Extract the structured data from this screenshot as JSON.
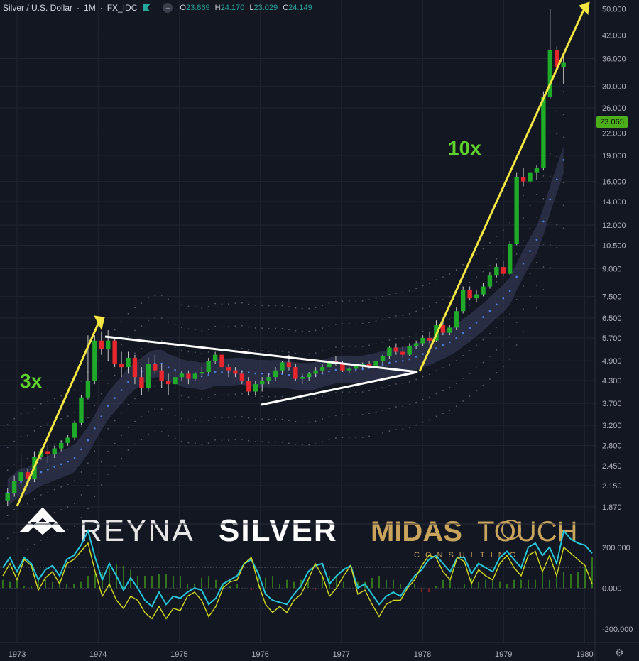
{
  "header": {
    "symbol": "Silver / U.S. Dollar",
    "interval": "1M",
    "source": "FX_IDC",
    "o": "23.869",
    "h": "24.170",
    "l": "23.029",
    "c": "24.149"
  },
  "last_price": "23.065",
  "annotations": {
    "left_multiplier": "3x",
    "right_multiplier": "10x"
  },
  "watermark": {
    "brand_light": "REYNA",
    "brand_bold": "SILVER",
    "partner": "MIDAS",
    "partner2": "TOUCH",
    "partner_sub": "CONSULTING"
  },
  "colors": {
    "bg": "#131722",
    "up": "#26a69a",
    "down": "#ef5350",
    "up_candle": "#1faa2a",
    "down_candle": "#e8262e",
    "arrow": "#f5e642",
    "triangle": "#ffffff",
    "accent_green": "#5fd32b",
    "osc_cyan": "#26c6da",
    "osc_yellow": "#d4d91c"
  },
  "chart_data": [
    {
      "type": "candlestick",
      "title": "Silver / U.S. Dollar",
      "scale": "log",
      "ylim": [
        1.75,
        52
      ],
      "y_ticks": [
        "50.000",
        "42.000",
        "36.000",
        "30.000",
        "26.000",
        "22.000",
        "19.000",
        "16.000",
        "14.000",
        "12.000",
        "10.500",
        "9.000",
        "7.500",
        "6.500",
        "5.700",
        "4.900",
        "4.300",
        "3.700",
        "3.200",
        "2.800",
        "2.450",
        "2.150",
        "1.870"
      ],
      "x_ticks": [
        "1973",
        "1974",
        "1975",
        "1976",
        "1977",
        "1978",
        "1979",
        "1980"
      ],
      "ohlc": [
        [
          1.95,
          2.12,
          1.88,
          2.05
        ],
        [
          2.05,
          2.3,
          2.0,
          2.22
        ],
        [
          2.22,
          2.65,
          2.15,
          2.35
        ],
        [
          2.35,
          2.4,
          2.15,
          2.25
        ],
        [
          2.25,
          2.7,
          2.2,
          2.6
        ],
        [
          2.6,
          2.75,
          2.55,
          2.7
        ],
        [
          2.7,
          2.8,
          2.5,
          2.65
        ],
        [
          2.65,
          2.8,
          2.58,
          2.75
        ],
        [
          2.75,
          2.9,
          2.7,
          2.85
        ],
        [
          2.85,
          3.0,
          2.8,
          2.95
        ],
        [
          2.95,
          3.3,
          2.9,
          3.25
        ],
        [
          3.25,
          3.9,
          3.2,
          3.85
        ],
        [
          3.85,
          5.8,
          3.8,
          4.3
        ],
        [
          4.3,
          5.8,
          4.2,
          5.6
        ],
        [
          5.6,
          5.95,
          5.1,
          5.3
        ],
        [
          5.3,
          6.0,
          4.9,
          5.6
        ],
        [
          5.6,
          5.7,
          4.7,
          4.8
        ],
        [
          4.8,
          5.2,
          4.4,
          4.7
        ],
        [
          4.7,
          5.2,
          4.5,
          5.0
        ],
        [
          5.0,
          5.1,
          4.2,
          4.4
        ],
        [
          4.4,
          4.7,
          3.9,
          4.1
        ],
        [
          4.1,
          5.0,
          4.0,
          4.8
        ],
        [
          4.8,
          5.1,
          4.5,
          4.6
        ],
        [
          4.6,
          4.8,
          4.1,
          4.3
        ],
        [
          4.3,
          4.5,
          3.9,
          4.2
        ],
        [
          4.2,
          4.6,
          4.1,
          4.4
        ],
        [
          4.4,
          4.6,
          4.3,
          4.5
        ],
        [
          4.5,
          4.6,
          4.2,
          4.35
        ],
        [
          4.35,
          4.55,
          4.3,
          4.5
        ],
        [
          4.5,
          4.7,
          4.4,
          4.55
        ],
        [
          4.55,
          5.0,
          4.5,
          4.9
        ],
        [
          4.9,
          5.2,
          4.8,
          5.1
        ],
        [
          5.1,
          5.2,
          4.6,
          4.7
        ],
        [
          4.7,
          4.8,
          4.4,
          4.6
        ],
        [
          4.6,
          4.7,
          4.4,
          4.5
        ],
        [
          4.5,
          4.6,
          4.2,
          4.3
        ],
        [
          4.3,
          4.4,
          3.9,
          4.0
        ],
        [
          4.0,
          4.3,
          3.9,
          4.2
        ],
        [
          4.2,
          4.4,
          4.0,
          4.3
        ],
        [
          4.3,
          4.5,
          4.2,
          4.4
        ],
        [
          4.4,
          4.7,
          4.3,
          4.6
        ],
        [
          4.6,
          4.9,
          4.5,
          4.85
        ],
        [
          4.85,
          5.1,
          4.6,
          4.7
        ],
        [
          4.7,
          4.8,
          4.3,
          4.35
        ],
        [
          4.35,
          4.5,
          4.2,
          4.4
        ],
        [
          4.4,
          4.55,
          4.3,
          4.5
        ],
        [
          4.5,
          4.7,
          4.4,
          4.6
        ],
        [
          4.6,
          4.8,
          4.5,
          4.7
        ],
        [
          4.7,
          4.95,
          4.6,
          4.9
        ],
        [
          4.9,
          5.05,
          4.75,
          4.8
        ],
        [
          4.8,
          4.9,
          4.55,
          4.6
        ],
        [
          4.6,
          4.7,
          4.5,
          4.65
        ],
        [
          4.65,
          4.8,
          4.55,
          4.75
        ],
        [
          4.75,
          4.85,
          4.65,
          4.8
        ],
        [
          4.8,
          4.9,
          4.7,
          4.75
        ],
        [
          4.75,
          4.95,
          4.7,
          4.9
        ],
        [
          4.9,
          5.1,
          4.8,
          5.05
        ],
        [
          5.05,
          5.4,
          4.95,
          5.35
        ],
        [
          5.35,
          5.5,
          5.1,
          5.2
        ],
        [
          5.2,
          5.4,
          5.0,
          5.1
        ],
        [
          5.1,
          5.5,
          5.05,
          5.4
        ],
        [
          5.4,
          5.6,
          5.3,
          5.5
        ],
        [
          5.5,
          5.8,
          5.4,
          5.7
        ],
        [
          5.7,
          5.95,
          5.5,
          5.6
        ],
        [
          5.6,
          6.4,
          5.55,
          6.2
        ],
        [
          6.2,
          6.3,
          5.8,
          5.9
        ],
        [
          5.9,
          6.2,
          5.8,
          6.1
        ],
        [
          6.1,
          7.0,
          6.0,
          6.8
        ],
        [
          6.8,
          8.0,
          6.7,
          7.8
        ],
        [
          7.8,
          8.0,
          7.3,
          7.4
        ],
        [
          7.4,
          7.8,
          7.2,
          7.6
        ],
        [
          7.6,
          8.2,
          7.5,
          8.0
        ],
        [
          8.0,
          8.8,
          7.9,
          8.6
        ],
        [
          8.6,
          9.3,
          8.5,
          9.1
        ],
        [
          9.1,
          9.5,
          8.6,
          8.7
        ],
        [
          8.7,
          10.8,
          8.6,
          10.6
        ],
        [
          10.6,
          17.0,
          10.5,
          16.5
        ],
        [
          16.5,
          17.5,
          15.5,
          16.0
        ],
        [
          16.0,
          17.8,
          15.8,
          17.0
        ],
        [
          17.0,
          17.8,
          16.2,
          17.5
        ],
        [
          17.5,
          29.0,
          17.2,
          28.0
        ],
        [
          28.0,
          50.0,
          27.5,
          38.0
        ],
        [
          38.0,
          39.0,
          33.0,
          34.0
        ],
        [
          34.0,
          37.0,
          30.5,
          35.0
        ]
      ]
    },
    {
      "type": "line",
      "title": "",
      "y_ticks": [
        "200.000",
        "0.000",
        "-200.000"
      ],
      "ylim": [
        -260,
        300
      ],
      "series": [
        {
          "values": [
            100,
            150,
            80,
            150,
            120,
            40,
            90,
            110,
            60,
            140,
            160,
            210,
            280,
            150,
            40,
            120,
            60,
            -10,
            50,
            0,
            -60,
            -90,
            -20,
            -80,
            -40,
            -50,
            -20,
            0,
            -10,
            -80,
            -50,
            20,
            40,
            60,
            120,
            140,
            70,
            -30,
            -60,
            -70,
            -80,
            -30,
            10,
            80,
            110,
            120,
            20,
            60,
            90,
            110,
            0,
            20,
            -30,
            -80,
            -40,
            -20,
            -40,
            10,
            60,
            90,
            140,
            160,
            120,
            80,
            150,
            150,
            70,
            120,
            100,
            80,
            150,
            180,
            140,
            100,
            200,
            220,
            160,
            200,
            120,
            280,
            240,
            220,
            210,
            170
          ]
        },
        {
          "values": [
            60,
            120,
            40,
            140,
            110,
            -10,
            50,
            80,
            20,
            120,
            140,
            180,
            220,
            80,
            -40,
            20,
            -60,
            -100,
            -40,
            -60,
            -120,
            -150,
            -90,
            -150,
            -100,
            -110,
            -40,
            -20,
            -60,
            -140,
            -90,
            0,
            30,
            40,
            120,
            150,
            20,
            -80,
            -120,
            -90,
            -120,
            -60,
            -30,
            40,
            120,
            60,
            -40,
            0,
            60,
            110,
            -30,
            -10,
            -80,
            -140,
            -80,
            -60,
            -60,
            0,
            40,
            110,
            160,
            150,
            80,
            40,
            150,
            130,
            20,
            90,
            60,
            40,
            120,
            160,
            100,
            60,
            160,
            180,
            80,
            160,
            60,
            200,
            170,
            140,
            110,
            20
          ]
        }
      ],
      "histogram": [
        40,
        30,
        40,
        10,
        10,
        50,
        40,
        30,
        40,
        20,
        20,
        30,
        60,
        70,
        80,
        100,
        120,
        110,
        90,
        60,
        60,
        60,
        70,
        70,
        60,
        60,
        20,
        20,
        50,
        60,
        40,
        20,
        10,
        20,
        0,
        -10,
        50,
        50,
        60,
        20,
        40,
        30,
        40,
        40,
        -10,
        60,
        60,
        60,
        30,
        0,
        30,
        30,
        50,
        60,
        40,
        40,
        20,
        10,
        20,
        -20,
        -20,
        10,
        40,
        40,
        0,
        20,
        50,
        30,
        40,
        40,
        30,
        20,
        40,
        40,
        40,
        40,
        80,
        40,
        60,
        80,
        70,
        80,
        100,
        150
      ]
    }
  ]
}
